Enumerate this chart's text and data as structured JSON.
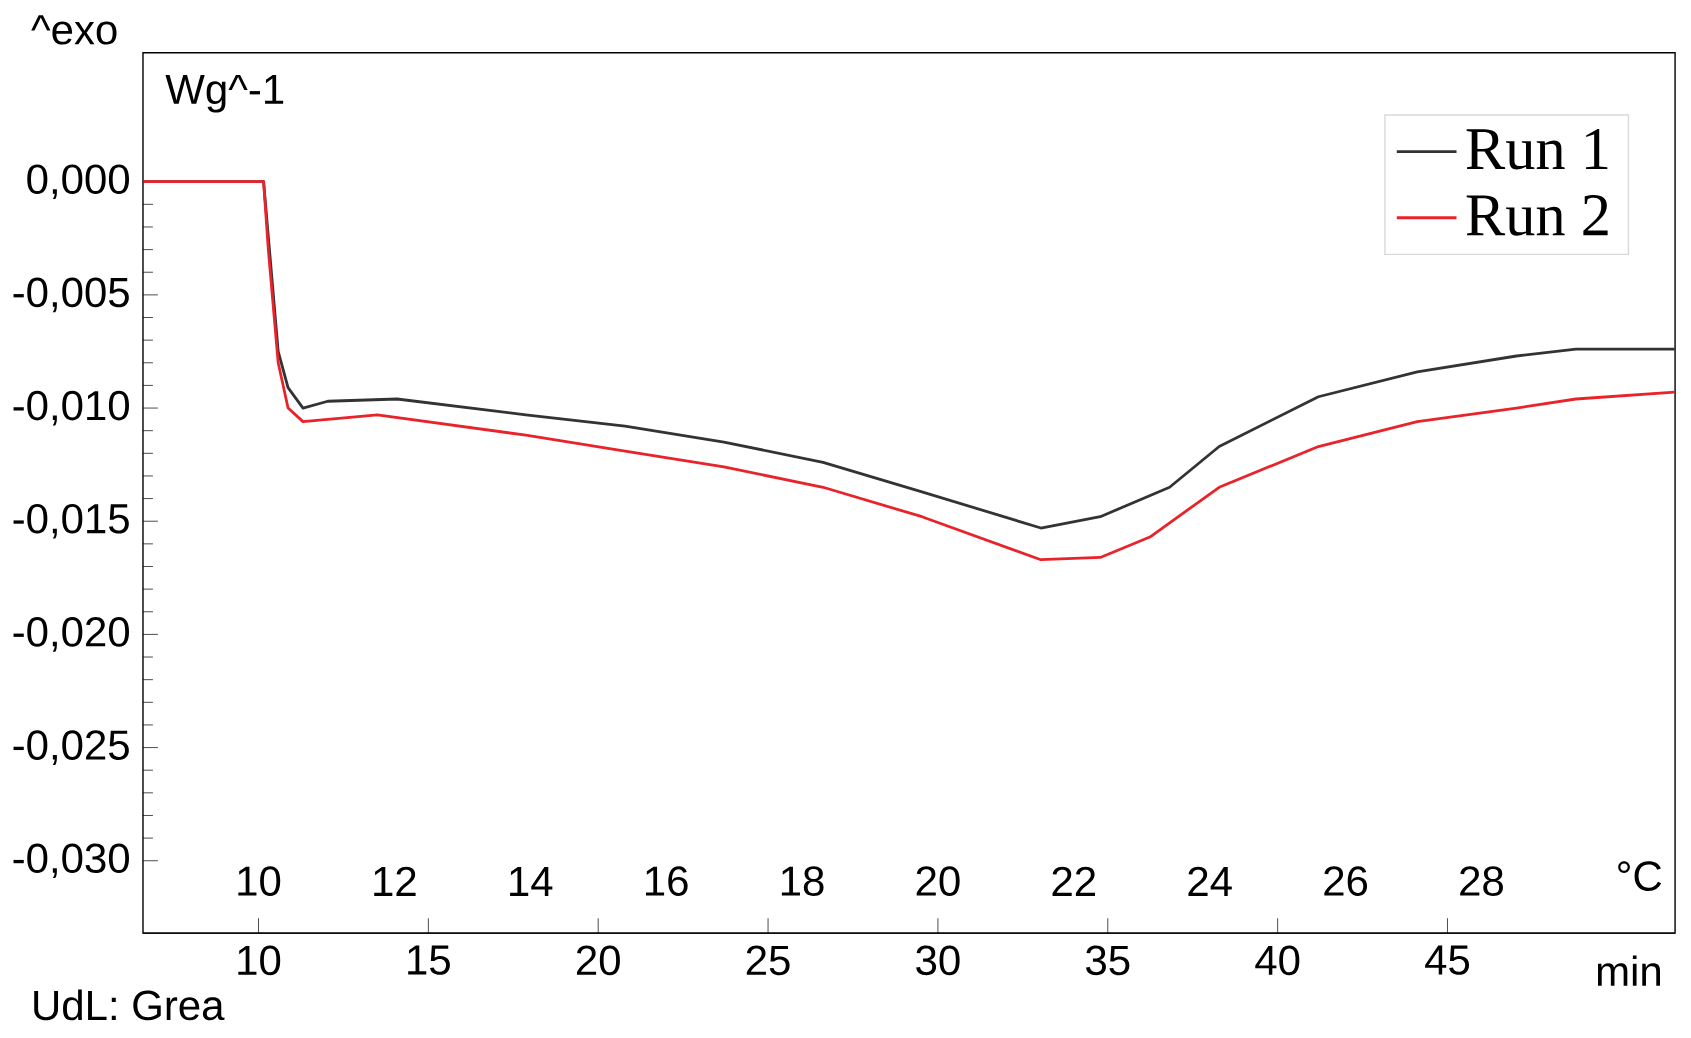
{
  "chart_data": {
    "type": "line",
    "xlabel": "min",
    "x2label": "°C",
    "ylabel": "Wg^-1",
    "annotations": [
      "^exo",
      "UdL: Grea"
    ],
    "xlim": [
      6.6,
      51.7
    ],
    "xticks": [
      10,
      15,
      20,
      25,
      30,
      35,
      40,
      45
    ],
    "x2lim": [
      8.3,
      30.85
    ],
    "x2ticks": [
      10,
      12,
      14,
      16,
      18,
      20,
      22,
      24,
      26,
      28
    ],
    "ylim": [
      -0.0332,
      0.0057
    ],
    "yticks": [
      {
        "value": 0,
        "label": "0,000"
      },
      {
        "value": -0.005,
        "label": "-0,005"
      },
      {
        "value": -0.01,
        "label": "-0,010"
      },
      {
        "value": -0.015,
        "label": "-0,015"
      },
      {
        "value": -0.02,
        "label": "-0,020"
      },
      {
        "value": -0.025,
        "label": "-0,025"
      },
      {
        "value": -0.03,
        "label": "-0,030"
      }
    ],
    "legend": "top right",
    "series": [
      {
        "name": "Run 1",
        "color": "#333333",
        "x": [
          6.62,
          10.15,
          10.29,
          10.58,
          10.87,
          11.31,
          12.04,
          14.08,
          17.87,
          20.79,
          23.7,
          26.62,
          29.53,
          33.03,
          34.78,
          36.82,
          38.28,
          41.2,
          44.11,
          47.03,
          48.78,
          51.69
        ],
        "values": [
          0,
          0,
          null,
          -0.0075,
          -0.0091,
          -0.01,
          -0.0097,
          -0.0096,
          -0.0103,
          -0.0108,
          -0.0115,
          -0.0124,
          -0.0137,
          -0.0153,
          -0.0148,
          -0.0135,
          -0.0117,
          -0.0095,
          -0.0084,
          -0.0077,
          -0.0074,
          -0.0074
        ]
      },
      {
        "name": "Run 2",
        "color": "#e8232a",
        "x": [
          6.62,
          10.15,
          10.29,
          10.58,
          10.87,
          11.31,
          13.5,
          17.87,
          20.79,
          23.7,
          26.62,
          29.53,
          33.03,
          34.78,
          36.24,
          38.28,
          41.2,
          44.11,
          47.03,
          48.78,
          51.69
        ],
        "values": [
          0,
          0,
          -0.003,
          -0.008,
          -0.01,
          -0.0106,
          -0.0103,
          -0.0112,
          -0.0119,
          -0.0126,
          -0.0135,
          -0.0148,
          -0.0167,
          -0.0166,
          -0.0157,
          -0.0135,
          -0.0117,
          -0.0106,
          -0.01,
          -0.0096,
          -0.0093
        ]
      }
    ]
  }
}
